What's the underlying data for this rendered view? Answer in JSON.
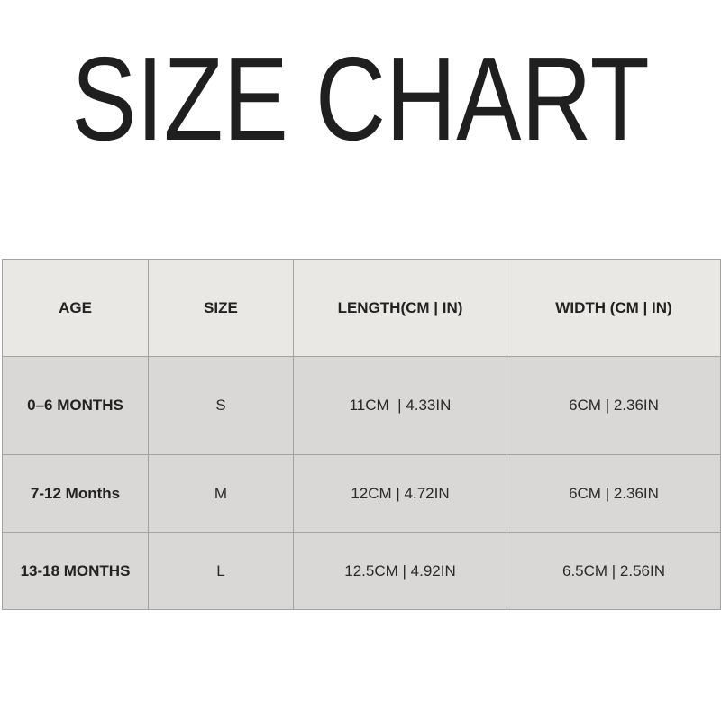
{
  "title": "SIZE CHART",
  "table": {
    "headers": [
      "AGE",
      "SIZE",
      "LENGTH(CM | IN)",
      "WIDTH (CM | IN)"
    ],
    "rows": [
      [
        "0–6 MONTHS",
        "S",
        "11CM  | 4.33IN",
        "6CM | 2.36IN"
      ],
      [
        "7-12 Months",
        "M",
        "12CM | 4.72IN",
        "6CM | 2.36IN"
      ],
      [
        "13-18 MONTHS",
        "L",
        "12.5CM | 4.92IN",
        "6.5CM | 2.56IN"
      ]
    ]
  },
  "colors": {
    "header_bg": "#e9e8e5",
    "body_bg": "#d9d8d7",
    "border": "#a3a3a3",
    "text": "#222222"
  }
}
